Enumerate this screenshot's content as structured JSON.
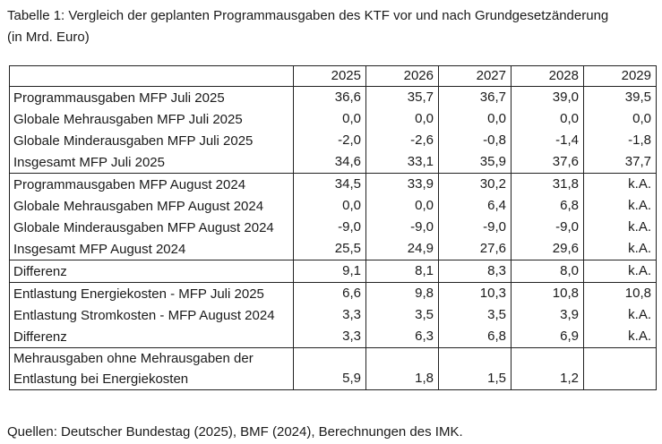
{
  "caption": "Tabelle 1: Vergleich der geplanten Programmausgaben des KTF vor und nach Grundgesetzänderung\n(in Mrd. Euro)",
  "table": {
    "header": [
      "",
      "2025",
      "2026",
      "2027",
      "2028",
      "2029"
    ],
    "groups": [
      {
        "rows": [
          {
            "label": "Programmausgaben MFP Juli 2025",
            "values": [
              "36,6",
              "35,7",
              "36,7",
              "39,0",
              "39,5"
            ]
          },
          {
            "label": "Globale Mehrausgaben MFP Juli 2025",
            "values": [
              "0,0",
              "0,0",
              "0,0",
              "0,0",
              "0,0"
            ]
          },
          {
            "label": "Globale Minderausgaben MFP Juli 2025",
            "values": [
              "-2,0",
              "-2,6",
              "-0,8",
              "-1,4",
              "-1,8"
            ]
          },
          {
            "label": "Insgesamt MFP Juli 2025",
            "values": [
              "34,6",
              "33,1",
              "35,9",
              "37,6",
              "37,7"
            ]
          }
        ]
      },
      {
        "rows": [
          {
            "label": "Programmausgaben MFP August 2024",
            "values": [
              "34,5",
              "33,9",
              "30,2",
              "31,8",
              "k.A."
            ]
          },
          {
            "label": "Globale Mehrausgaben MFP August 2024",
            "values": [
              "0,0",
              "0,0",
              "6,4",
              "6,8",
              "k.A."
            ]
          },
          {
            "label": "Globale Minderausgaben MFP August 2024",
            "values": [
              "-9,0",
              "-9,0",
              "-9,0",
              "-9,0",
              "k.A."
            ]
          },
          {
            "label": "Insgesamt MFP August 2024",
            "values": [
              "25,5",
              "24,9",
              "27,6",
              "29,6",
              "k.A."
            ]
          }
        ]
      },
      {
        "rows": [
          {
            "label": "Differenz",
            "values": [
              "9,1",
              "8,1",
              "8,3",
              "8,0",
              "k.A."
            ]
          }
        ]
      },
      {
        "rows": [
          {
            "label": "Entlastung Energiekosten - MFP Juli 2025",
            "values": [
              "6,6",
              "9,8",
              "10,3",
              "10,8",
              "10,8"
            ]
          },
          {
            "label": "Entlastung Stromkosten - MFP August 2024",
            "values": [
              "3,3",
              "3,5",
              "3,5",
              "3,9",
              "k.A."
            ]
          },
          {
            "label": "Differenz",
            "values": [
              "3,3",
              "6,3",
              "6,8",
              "6,9",
              "k.A."
            ]
          }
        ]
      },
      {
        "rows": [
          {
            "label": "Mehrausgaben ohne Mehrausgaben der Entlastung bei Energiekosten",
            "values": [
              "5,9",
              "1,8",
              "1,5",
              "1,2",
              ""
            ]
          }
        ]
      }
    ]
  },
  "source": "Quellen: Deutscher Bundestag (2025), BMF (2024), Berechnungen des IMK."
}
